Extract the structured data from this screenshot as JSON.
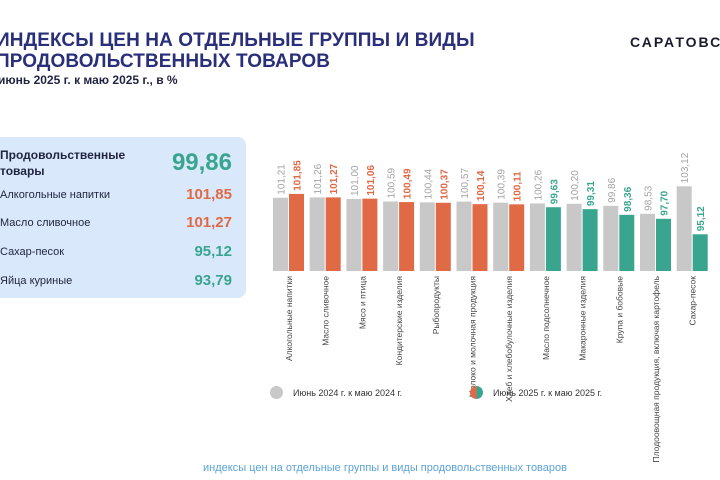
{
  "header": {
    "title_line1": "ИНДЕКСЫ ЦЕН НА ОТДЕЛЬНЫЕ ГРУППЫ И ВИДЫ",
    "title_line2": "ПРОДОВОЛЬСТВЕННЫХ ТОВАРОВ",
    "subtitle": "июнь 2025 г. к маю 2025 г., в %",
    "brand": "САРАТОВСТАТ"
  },
  "summary": {
    "main_label": "Продовольственные товары",
    "main_value": "99,86",
    "items": [
      {
        "label": "Алкогольные напитки",
        "value": "101,85",
        "trend": "up"
      },
      {
        "label": "Масло сливочное",
        "value": "101,27",
        "trend": "up"
      },
      {
        "label": "Сахар-песок",
        "value": "95,12",
        "trend": "down"
      },
      {
        "label": "Яйца куриные",
        "value": "93,79",
        "trend": "down"
      }
    ]
  },
  "colors": {
    "prev": "#c8c8c8",
    "up": "#e06a45",
    "down": "#3aa58f",
    "panel": "#d9e8fb",
    "title": "#2a2f7a"
  },
  "chart_data": {
    "type": "bar",
    "categories": [
      "Алкогольные напитки",
      "Масло сливочное",
      "Мясо и птица",
      "Кондитерские изделия",
      "Рыбопродукты",
      "Молоко и молочная продукция",
      "Хлеб и хлебобулочные изделия",
      "Масло подсолнечное",
      "Макаронные изделия",
      "Крупа и бобовые",
      "Плодоовощная продукция, включая картофель",
      "Сахар-песок"
    ],
    "series": [
      {
        "name": "Июнь 2024 г. к маю 2024 г.",
        "values": [
          101.21,
          101.26,
          101.0,
          100.59,
          100.44,
          100.57,
          100.39,
          100.26,
          100.2,
          99.86,
          98.53,
          103.12
        ],
        "labels": [
          "101,21",
          "101,26",
          "101,00",
          "100,59",
          "100,44",
          "100,57",
          "100,39",
          "100,26",
          "100,20",
          "99,86",
          "98,53",
          "103,12"
        ]
      },
      {
        "name": "Июнь 2025 г. к маю 2025 г.",
        "values": [
          101.85,
          101.27,
          101.06,
          100.49,
          100.37,
          100.14,
          100.11,
          99.63,
          99.31,
          98.36,
          97.7,
          95.12
        ],
        "labels": [
          "101,85",
          "101,27",
          "101,06",
          "100,49",
          "100,37",
          "100,14",
          "100,11",
          "99,63",
          "99,31",
          "98,36",
          "97,70",
          "95,12"
        ]
      }
    ]
  },
  "legend": {
    "prev_label": "Июнь 2024 г. к маю 2024 г.",
    "curr_label": "Июнь 2025 г. к маю 2025 г."
  },
  "footer": "индексы цен на отдельные группы и виды продовольственных товаров"
}
